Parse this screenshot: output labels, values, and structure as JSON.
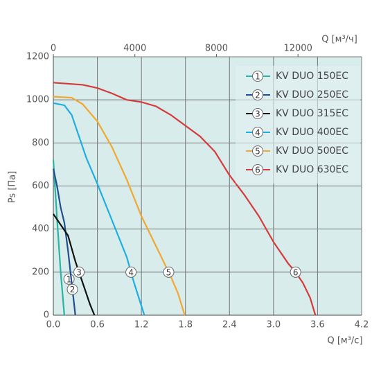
{
  "chart_data": {
    "type": "line",
    "xlabel": "Q [м³/с]",
    "x2label": "Q [м³/ч]",
    "ylabel": "Ps [Па]",
    "xlim": [
      0,
      4.2
    ],
    "xticks": [
      {
        "value": 0,
        "label": "0.0"
      },
      0.6,
      1.2,
      1.8,
      2.4,
      {
        "value": 3,
        "label": "3.0"
      },
      3.6,
      4.2
    ],
    "x2lim": [
      0,
      15120
    ],
    "x2ticks": [
      0,
      4000,
      8000,
      12000
    ],
    "ylim": [
      0,
      1200
    ],
    "yticks": [
      0,
      200,
      400,
      600,
      800,
      1000,
      1200
    ],
    "grid": true,
    "legend": "upper right",
    "series": [
      {
        "name": "KV DUO 150EC",
        "label": "1",
        "color": "#2bb3a3",
        "x": [
          0,
          0.05,
          0.1,
          0.15
        ],
        "values": [
          720,
          450,
          200,
          0
        ]
      },
      {
        "name": "KV DUO 250EC",
        "label": "2",
        "color": "#1f4f8f",
        "x": [
          0,
          0.05,
          0.1,
          0.15,
          0.2,
          0.25,
          0.3
        ],
        "values": [
          680,
          600,
          500,
          430,
          300,
          150,
          0
        ]
      },
      {
        "name": "KV DUO 315EC",
        "label": "3",
        "color": "#111111",
        "x": [
          0,
          0.1,
          0.2,
          0.3,
          0.4,
          0.5,
          0.56
        ],
        "values": [
          470,
          420,
          370,
          250,
          150,
          50,
          0
        ]
      },
      {
        "name": "KV DUO 400EC",
        "label": "4",
        "color": "#1eaee0",
        "x": [
          0,
          0.15,
          0.25,
          0.35,
          0.45,
          0.6,
          0.8,
          1.0,
          1.1,
          1.24
        ],
        "values": [
          985,
          975,
          930,
          830,
          730,
          610,
          440,
          270,
          150,
          0
        ]
      },
      {
        "name": "KV DUO 500EC",
        "label": "5",
        "color": "#f0a830",
        "x": [
          0,
          0.25,
          0.4,
          0.6,
          0.8,
          1.0,
          1.2,
          1.4,
          1.6,
          1.7,
          1.79
        ],
        "values": [
          1015,
          1010,
          980,
          900,
          780,
          630,
          460,
          320,
          180,
          100,
          0
        ]
      },
      {
        "name": "KV DUO 630EC",
        "label": "6",
        "color": "#d63a3a",
        "x": [
          0,
          0.4,
          0.6,
          0.8,
          1.0,
          1.2,
          1.4,
          1.6,
          2.0,
          2.2,
          2.4,
          2.6,
          2.8,
          3.0,
          3.2,
          3.3,
          3.4,
          3.5,
          3.57
        ],
        "values": [
          1080,
          1070,
          1055,
          1030,
          1000,
          990,
          970,
          930,
          830,
          760,
          650,
          560,
          460,
          340,
          240,
          200,
          150,
          80,
          0
        ]
      }
    ]
  }
}
